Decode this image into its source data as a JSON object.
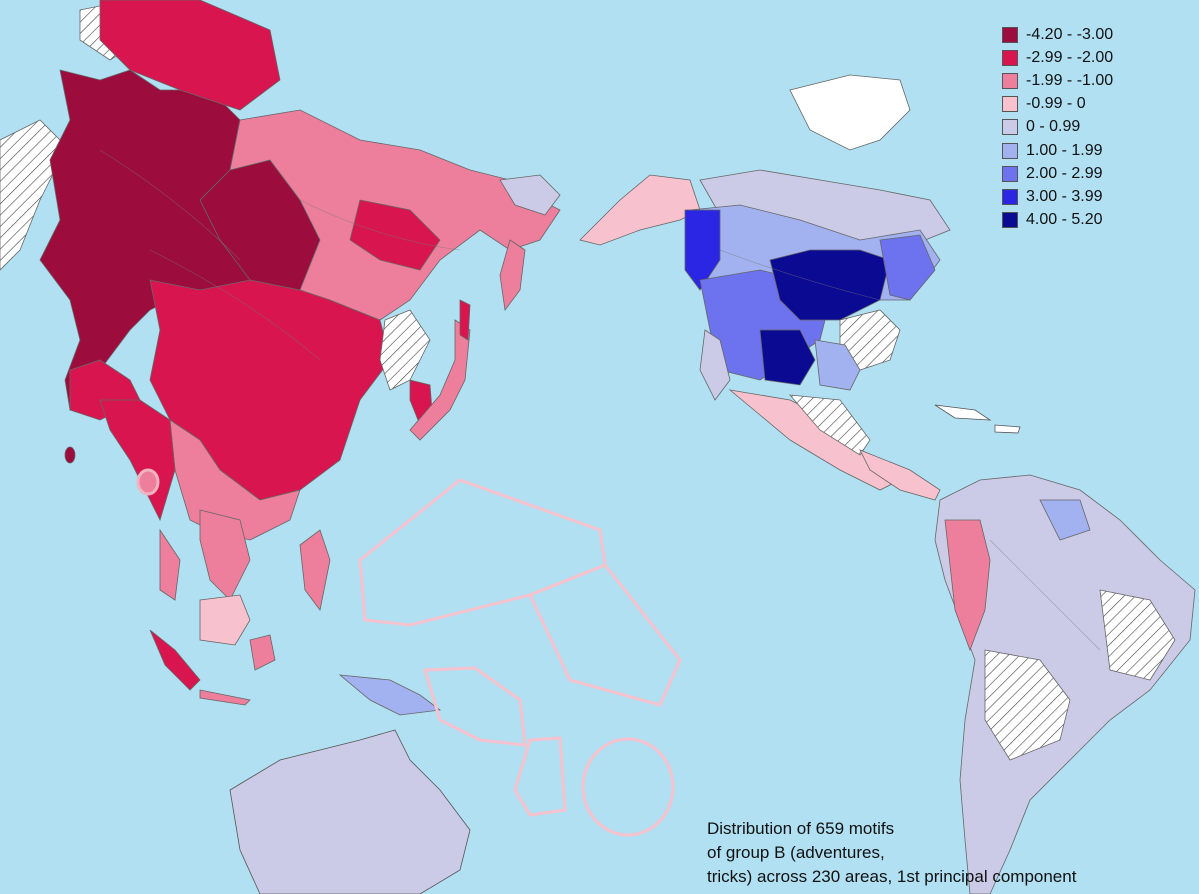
{
  "legend": [
    {
      "label": "-4.20 - -3.00",
      "color": "#9c0c3c"
    },
    {
      "label": "-2.99 - -2.00",
      "color": "#d8154e"
    },
    {
      "label": "-1.99 - -1.00",
      "color": "#ee7f9c"
    },
    {
      "label": "-0.99 - 0",
      "color": "#f7c2cd"
    },
    {
      "label": "0 - 0.99",
      "color": "#cbcbe8"
    },
    {
      "label": "1.00 - 1.99",
      "color": "#a2b1f0"
    },
    {
      "label": "2.00 - 2.99",
      "color": "#6d72ee"
    },
    {
      "label": "3.00 - 3.99",
      "color": "#2b26e4"
    },
    {
      "label": "4.00 - 5.20",
      "color": "#0b0a92"
    }
  ],
  "caption": {
    "line1": "Distribution of 659 motifs",
    "line2": "of group B (adventures,",
    "line3": "tricks) across 230 areas,  1st  principal component"
  },
  "colors": {
    "sea": "#b0e0f2",
    "no_data_hatch": "#444444",
    "greenland": "#ffffff"
  }
}
